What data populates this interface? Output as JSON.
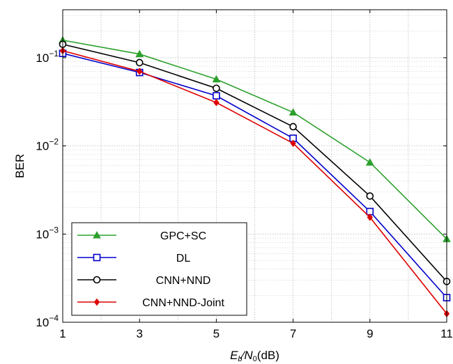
{
  "chart_data": {
    "type": "line",
    "xlabel": {
      "main": "E",
      "sub1": "b",
      "slash": "⁄",
      "main2": "N",
      "sub2": "0",
      "unit": "(dB)"
    },
    "ylabel": "BER",
    "x": [
      1,
      3,
      5,
      7,
      9,
      11
    ],
    "xlim": [
      1,
      11
    ],
    "ylim": [
      0.0001,
      0.35
    ],
    "yscale": "log",
    "grid": true,
    "legend_position": "bottom-left",
    "xticks": [
      "1",
      "3",
      "5",
      "7",
      "9",
      "11"
    ],
    "yticks": [
      {
        "value": 0.1,
        "base": "10",
        "exp": "−1"
      },
      {
        "value": 0.01,
        "base": "10",
        "exp": "−2"
      },
      {
        "value": 0.001,
        "base": "10",
        "exp": "−3"
      },
      {
        "value": 0.0001,
        "base": "10",
        "exp": "−4"
      }
    ],
    "series": [
      {
        "name": "GPC+SC",
        "color": "#2ca02c",
        "marker": "triangle",
        "values": [
          0.158,
          0.11,
          0.057,
          0.024,
          0.0065,
          0.00088
        ]
      },
      {
        "name": "DL",
        "color": "#0000cc",
        "marker": "square",
        "values": [
          0.112,
          0.068,
          0.037,
          0.0122,
          0.0018,
          0.00019
        ]
      },
      {
        "name": "CNN+NND",
        "color": "#000000",
        "marker": "circle",
        "values": [
          0.142,
          0.088,
          0.045,
          0.0165,
          0.0027,
          0.00029
        ]
      },
      {
        "name": "CNN+NND-Joint",
        "color": "#dd0000",
        "marker": "diamond",
        "values": [
          0.12,
          0.07,
          0.031,
          0.0107,
          0.00155,
          0.000125
        ]
      }
    ]
  }
}
